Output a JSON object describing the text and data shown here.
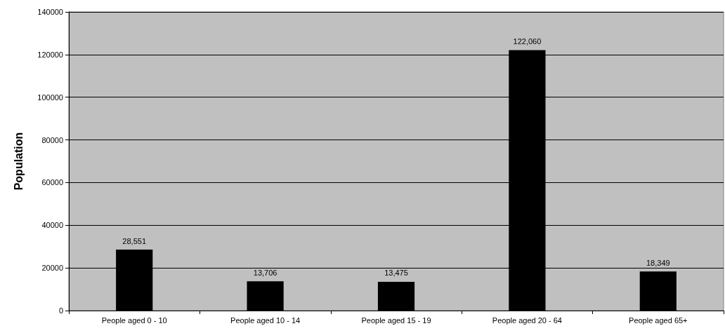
{
  "chart_data": {
    "type": "bar",
    "ylabel": "Population",
    "categories": [
      "People aged 0 - 10",
      "People aged 10 - 14",
      "People aged 15 - 19",
      "People aged 20 - 64",
      "People aged 65+"
    ],
    "values": [
      28551,
      13706,
      13475,
      122060,
      18349
    ],
    "value_labels": [
      "28,551",
      "13,706",
      "13,475",
      "122,060",
      "18,349"
    ],
    "color": "#000000",
    "ylim": [
      0,
      140000
    ],
    "yticks": [
      0,
      20000,
      40000,
      60000,
      80000,
      100000,
      120000,
      140000
    ],
    "grid": "y"
  }
}
